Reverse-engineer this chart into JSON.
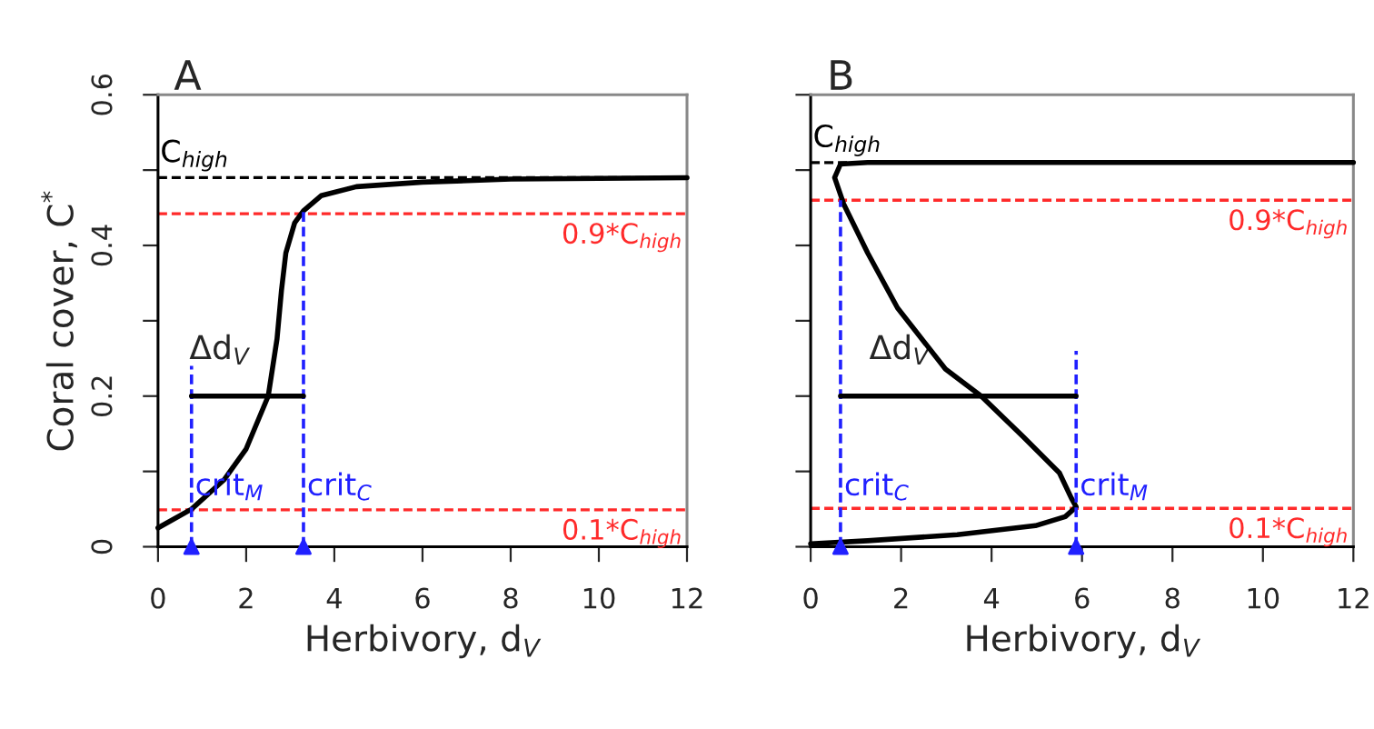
{
  "chart_data": [
    {
      "type": "line",
      "title": "A",
      "xlabel": "Herbivory, d$_{V}$",
      "ylabel": "Coral cover, C$^{*}$",
      "xlim": [
        0,
        12
      ],
      "ylim": [
        0,
        0.6
      ],
      "xticks": [
        0,
        2,
        4,
        6,
        8,
        10,
        12
      ],
      "yticks": [
        0,
        {
          "value": 0.1,
          "label": null
        },
        0.2,
        {
          "value": 0.3,
          "label": null
        },
        0.4,
        {
          "value": 0.5,
          "label": null
        },
        0.6
      ],
      "grid": false,
      "legend": false,
      "series": [
        {
          "color": "#000000",
          "x": [
            0,
            0.76,
            1.5,
            2,
            2.5,
            2.7,
            2.8,
            2.9,
            3.1,
            3.3,
            3.7,
            4.5,
            6,
            8,
            12
          ],
          "values": [
            0.025,
            0.05,
            0.089,
            0.13,
            0.2,
            0.276,
            0.34,
            0.39,
            0.43,
            0.446,
            0.466,
            0.478,
            0.484,
            0.488,
            0.49
          ]
        },
        {
          "color": "#2020ff",
          "line_style": "dashed",
          "x": [
            0.76,
            0.76
          ],
          "values": [
            0,
            0.24
          ]
        },
        {
          "color": "#2020ff",
          "line_style": "dashed",
          "x": [
            3.3,
            3.3
          ],
          "values": [
            0,
            0.45
          ]
        },
        {
          "type": "scatter",
          "marker": "triangle",
          "color": "#2020ff",
          "x": [
            0.76,
            3.3
          ],
          "values": [
            0,
            0
          ]
        },
        {
          "color": "#000000",
          "x": [
            0.76,
            3.3
          ],
          "values": [
            0.2,
            0.2
          ]
        }
      ],
      "ref_lines": [
        {
          "axis": "y",
          "value": 0.49,
          "label": "C$_{high}$",
          "color": "#000000",
          "line_style": "dashed"
        },
        {
          "axis": "y",
          "value": 0.442,
          "label": "0.9*C$_{high}$",
          "color": "#ff2a2a",
          "line_style": "dashed"
        },
        {
          "axis": "y",
          "value": 0.049,
          "label": "0.1*C$_{high}$",
          "color": "#ff2a2a",
          "line_style": "dashed"
        }
      ],
      "annotations": [
        {
          "text": "crit$_{M}$",
          "x": 0.76,
          "y": 0.06
        },
        {
          "text": "crit$_{C}$",
          "x": 3.3,
          "y": 0.06
        },
        "Δd$_{V}$"
      ]
    },
    {
      "type": "line",
      "title": "B",
      "xlabel": "Herbivory, d$_{V}$",
      "xlim": [
        0,
        12
      ],
      "ylim": [
        0,
        0.6
      ],
      "xticks": [
        0,
        2,
        4,
        6,
        8,
        10,
        12
      ],
      "yticks": [
        0,
        0.1,
        0.2,
        0.3,
        0.4,
        0.5,
        0.6
      ],
      "tick_labels": "x",
      "grid": false,
      "legend": false,
      "series": [
        {
          "color": "#000000",
          "x": [
            0,
            1.26,
            3.24,
            4.97,
            5.63,
            5.87,
            5.76,
            5.5,
            4.7,
            3.77,
            2.98,
            1.92,
            1.26,
            0.73,
            0.53,
            0.66,
            1.26,
            4,
            8,
            12
          ],
          "values": [
            0.004,
            0.008,
            0.016,
            0.028,
            0.04,
            0.053,
            0.065,
            0.098,
            0.146,
            0.2,
            0.236,
            0.317,
            0.39,
            0.455,
            0.49,
            0.508,
            0.51,
            0.51,
            0.51,
            0.51
          ]
        },
        {
          "color": "#2020ff",
          "line_style": "dashed",
          "x": [
            0.66,
            0.66
          ],
          "values": [
            0,
            0.46
          ]
        },
        {
          "color": "#2020ff",
          "line_style": "dashed",
          "x": [
            5.87,
            5.87
          ],
          "values": [
            0,
            0.26
          ]
        },
        {
          "type": "scatter",
          "marker": "triangle",
          "color": "#2020ff",
          "x": [
            0.66,
            5.87
          ],
          "values": [
            0,
            0
          ]
        },
        {
          "color": "#000000",
          "x": [
            0.66,
            5.87
          ],
          "values": [
            0.2,
            0.2
          ]
        }
      ],
      "ref_lines": [
        {
          "axis": "y",
          "value": 0.51,
          "label": "C$_{high}$",
          "color": "#000000",
          "line_style": "dashed"
        },
        {
          "axis": "y",
          "value": 0.46,
          "label": "0.9*C$_{high}$",
          "color": "#ff2a2a",
          "line_style": "dashed"
        },
        {
          "axis": "y",
          "value": 0.051,
          "label": "0.1*C$_{high}$",
          "color": "#ff2a2a",
          "line_style": "dashed"
        }
      ],
      "annotations": [
        {
          "text": "crit$_{C}$",
          "x": 0.66,
          "y": 0.06
        },
        {
          "text": "crit$_{M}$",
          "x": 5.87,
          "y": 0.06
        },
        "Δd$_{V}$"
      ]
    }
  ]
}
